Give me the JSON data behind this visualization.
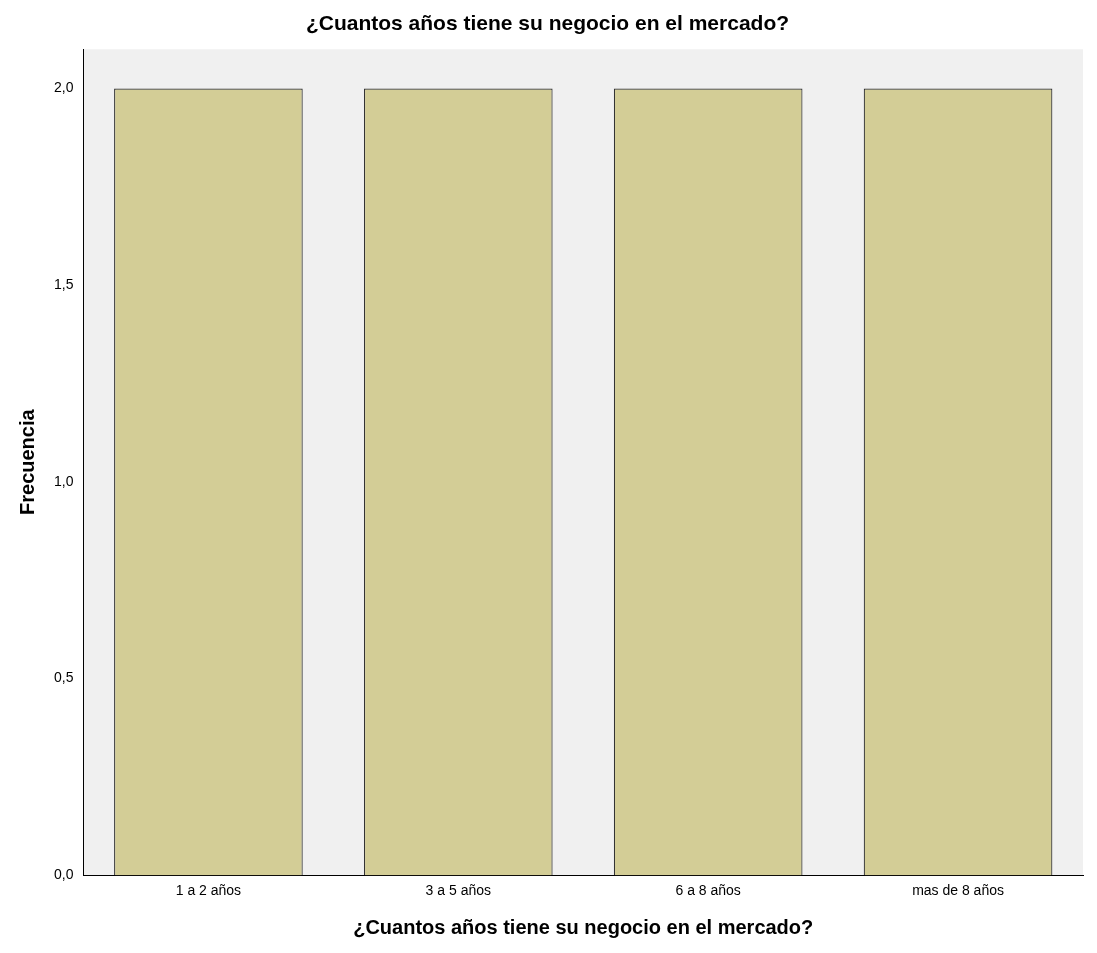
{
  "chart_data": {
    "type": "bar",
    "title": "¿Cuantos años tiene su negocio en el mercado?",
    "xlabel": "¿Cuantos años tiene su negocio en el mercado?",
    "ylabel": "Frecuencia",
    "categories": [
      "1 a 2 años",
      "3 a 5 años",
      "6 a 8 años",
      "mas de 8 años"
    ],
    "values": [
      2,
      2,
      2,
      2
    ],
    "color": "#d3cd96",
    "ylim": [
      0,
      2.1
    ],
    "yticks": [
      {
        "value": 0,
        "label": "0,0"
      },
      {
        "value": 0.5,
        "label": "0,5"
      },
      {
        "value": 1,
        "label": "1,0"
      },
      {
        "value": 1.5,
        "label": "1,5"
      },
      {
        "value": 2,
        "label": "2,0"
      }
    ],
    "grid": false,
    "legend": false
  }
}
